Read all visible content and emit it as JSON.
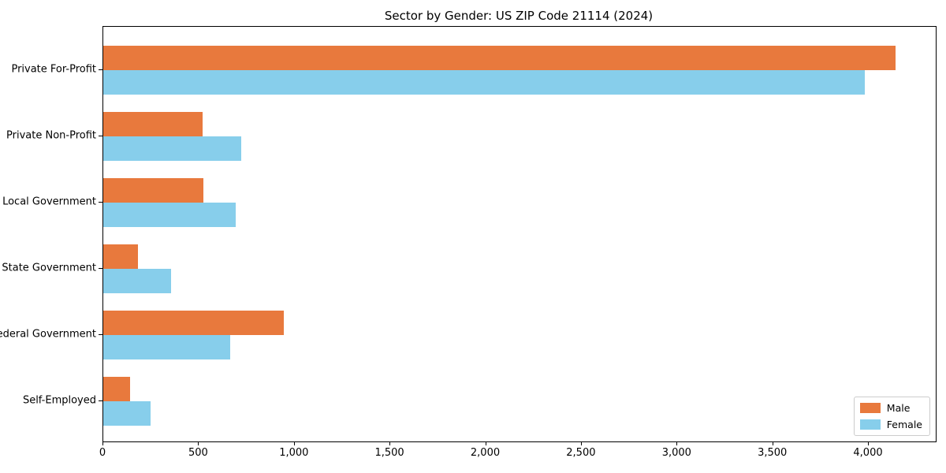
{
  "title": "Sector by Gender: US ZIP Code 21114 (2024)",
  "chart_data": {
    "type": "bar",
    "orientation": "horizontal",
    "title": "Sector by Gender: US ZIP Code 21114 (2024)",
    "categories": [
      "Private For-Profit",
      "Private Non-Profit",
      "Local Government",
      "State Government",
      "Federal Government",
      "Self-Employed"
    ],
    "series": [
      {
        "name": "Male",
        "color": "#e8793d",
        "values": [
          4140,
          520,
          525,
          180,
          945,
          140
        ]
      },
      {
        "name": "Female",
        "color": "#87ceeb",
        "values": [
          3980,
          720,
          690,
          355,
          665,
          245
        ]
      }
    ],
    "xlabel": "",
    "ylabel": "",
    "xlim": [
      0,
      4350
    ],
    "x_ticks": [
      0,
      500,
      1000,
      1500,
      2000,
      2500,
      3000,
      3500,
      4000
    ],
    "x_tick_labels": [
      "0",
      "500",
      "1,000",
      "1,500",
      "2,000",
      "2,500",
      "3,000",
      "3,500",
      "4,000"
    ],
    "grid": false,
    "legend_position": "lower right",
    "legend_entries": [
      "Male",
      "Female"
    ]
  }
}
